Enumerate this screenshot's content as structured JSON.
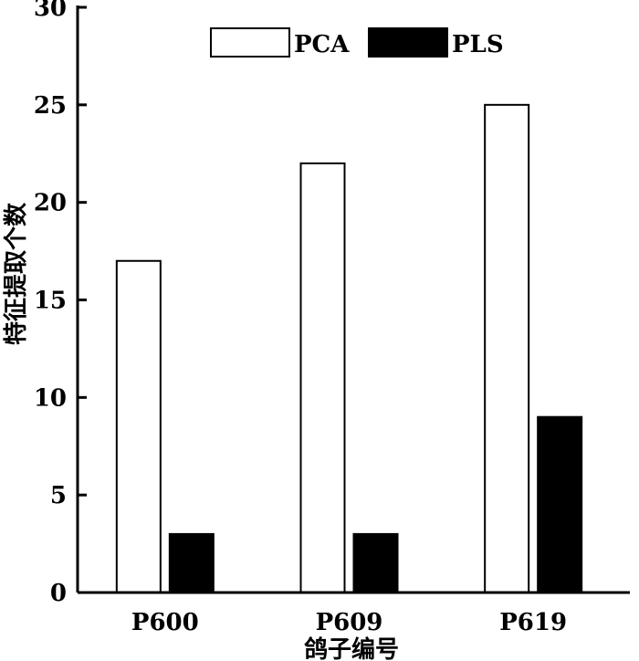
{
  "chart_data": {
    "type": "bar",
    "title": "",
    "xlabel": "鸽子编号",
    "ylabel": "特征提取个数",
    "categories": [
      "P600",
      "P609",
      "P619"
    ],
    "series": [
      {
        "name": "PCA",
        "values": [
          17,
          22,
          25
        ],
        "color": "#ffffff"
      },
      {
        "name": "PLS",
        "values": [
          3,
          3,
          9
        ],
        "color": "#000000"
      }
    ],
    "ylim": [
      0,
      30
    ],
    "yticks": [
      0,
      5,
      10,
      15,
      20,
      25,
      30
    ],
    "ytick_labels": [
      "0",
      "5",
      "10",
      "15",
      "20",
      "25",
      "30"
    ],
    "grid": false,
    "legend": "top-center"
  }
}
